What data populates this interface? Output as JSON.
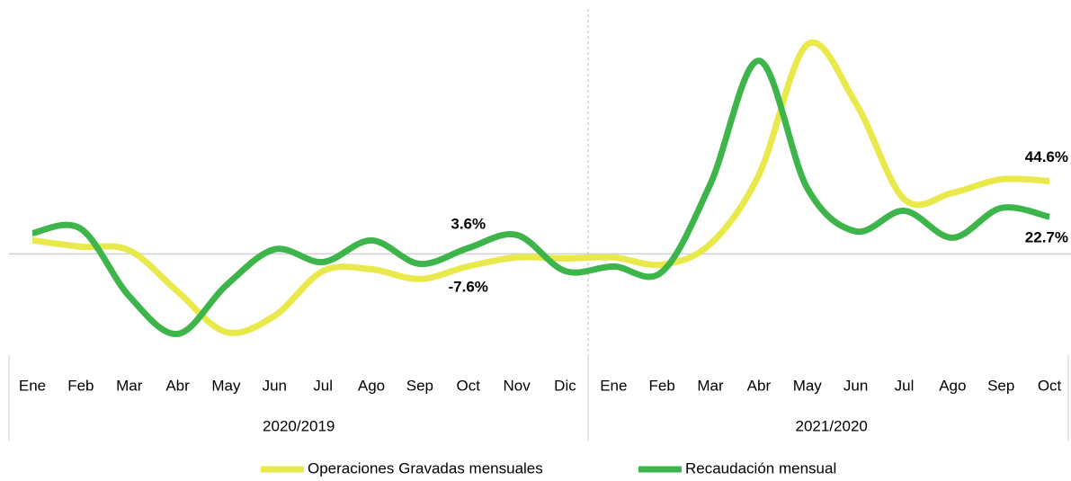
{
  "chart_data": {
    "type": "line",
    "groups": [
      {
        "name": "2020/2019",
        "categories": [
          "Ene",
          "Feb",
          "Mar",
          "Abr",
          "May",
          "Jun",
          "Jul",
          "Ago",
          "Sep",
          "Oct",
          "Nov",
          "Dic"
        ]
      },
      {
        "name": "2021/2020",
        "categories": [
          "Ene",
          "Feb",
          "Mar",
          "Abr",
          "May",
          "Jun",
          "Jul",
          "Ago",
          "Sep",
          "Oct"
        ]
      }
    ],
    "ylim": [
      -62,
      150
    ],
    "series": [
      {
        "name": "Operaciones Gravadas mensuales",
        "color": "#e9e94b",
        "values": [
          8.3,
          4.4,
          2.2,
          -23.1,
          -47.9,
          -37.9,
          -10.5,
          -9.4,
          -15.4,
          -7.6,
          -2.2,
          -2.8,
          -2.2,
          -6.6,
          6.1,
          48.4,
          128.2,
          92.4,
          33.6,
          37.4,
          45.7,
          44.6
        ],
        "value_labels": [
          null,
          null,
          null,
          null,
          null,
          null,
          null,
          null,
          null,
          "-7.6%",
          null,
          null,
          null,
          null,
          null,
          null,
          null,
          null,
          null,
          null,
          null,
          "44.6%"
        ]
      },
      {
        "name": "Recaudación mensual",
        "color": "#3db54a",
        "values": [
          12.7,
          15.4,
          -25.9,
          -49.0,
          -19.3,
          2.8,
          -5.0,
          8.3,
          -6.1,
          3.6,
          11.6,
          -10.5,
          -7.7,
          -11.0,
          42.9,
          118.3,
          40.2,
          13.8,
          26.4,
          9.9,
          28.1,
          22.7
        ],
        "value_labels": [
          null,
          null,
          null,
          null,
          null,
          null,
          null,
          null,
          null,
          "3.6%",
          null,
          null,
          null,
          null,
          null,
          null,
          null,
          null,
          null,
          null,
          null,
          "22.7%"
        ]
      }
    ]
  }
}
